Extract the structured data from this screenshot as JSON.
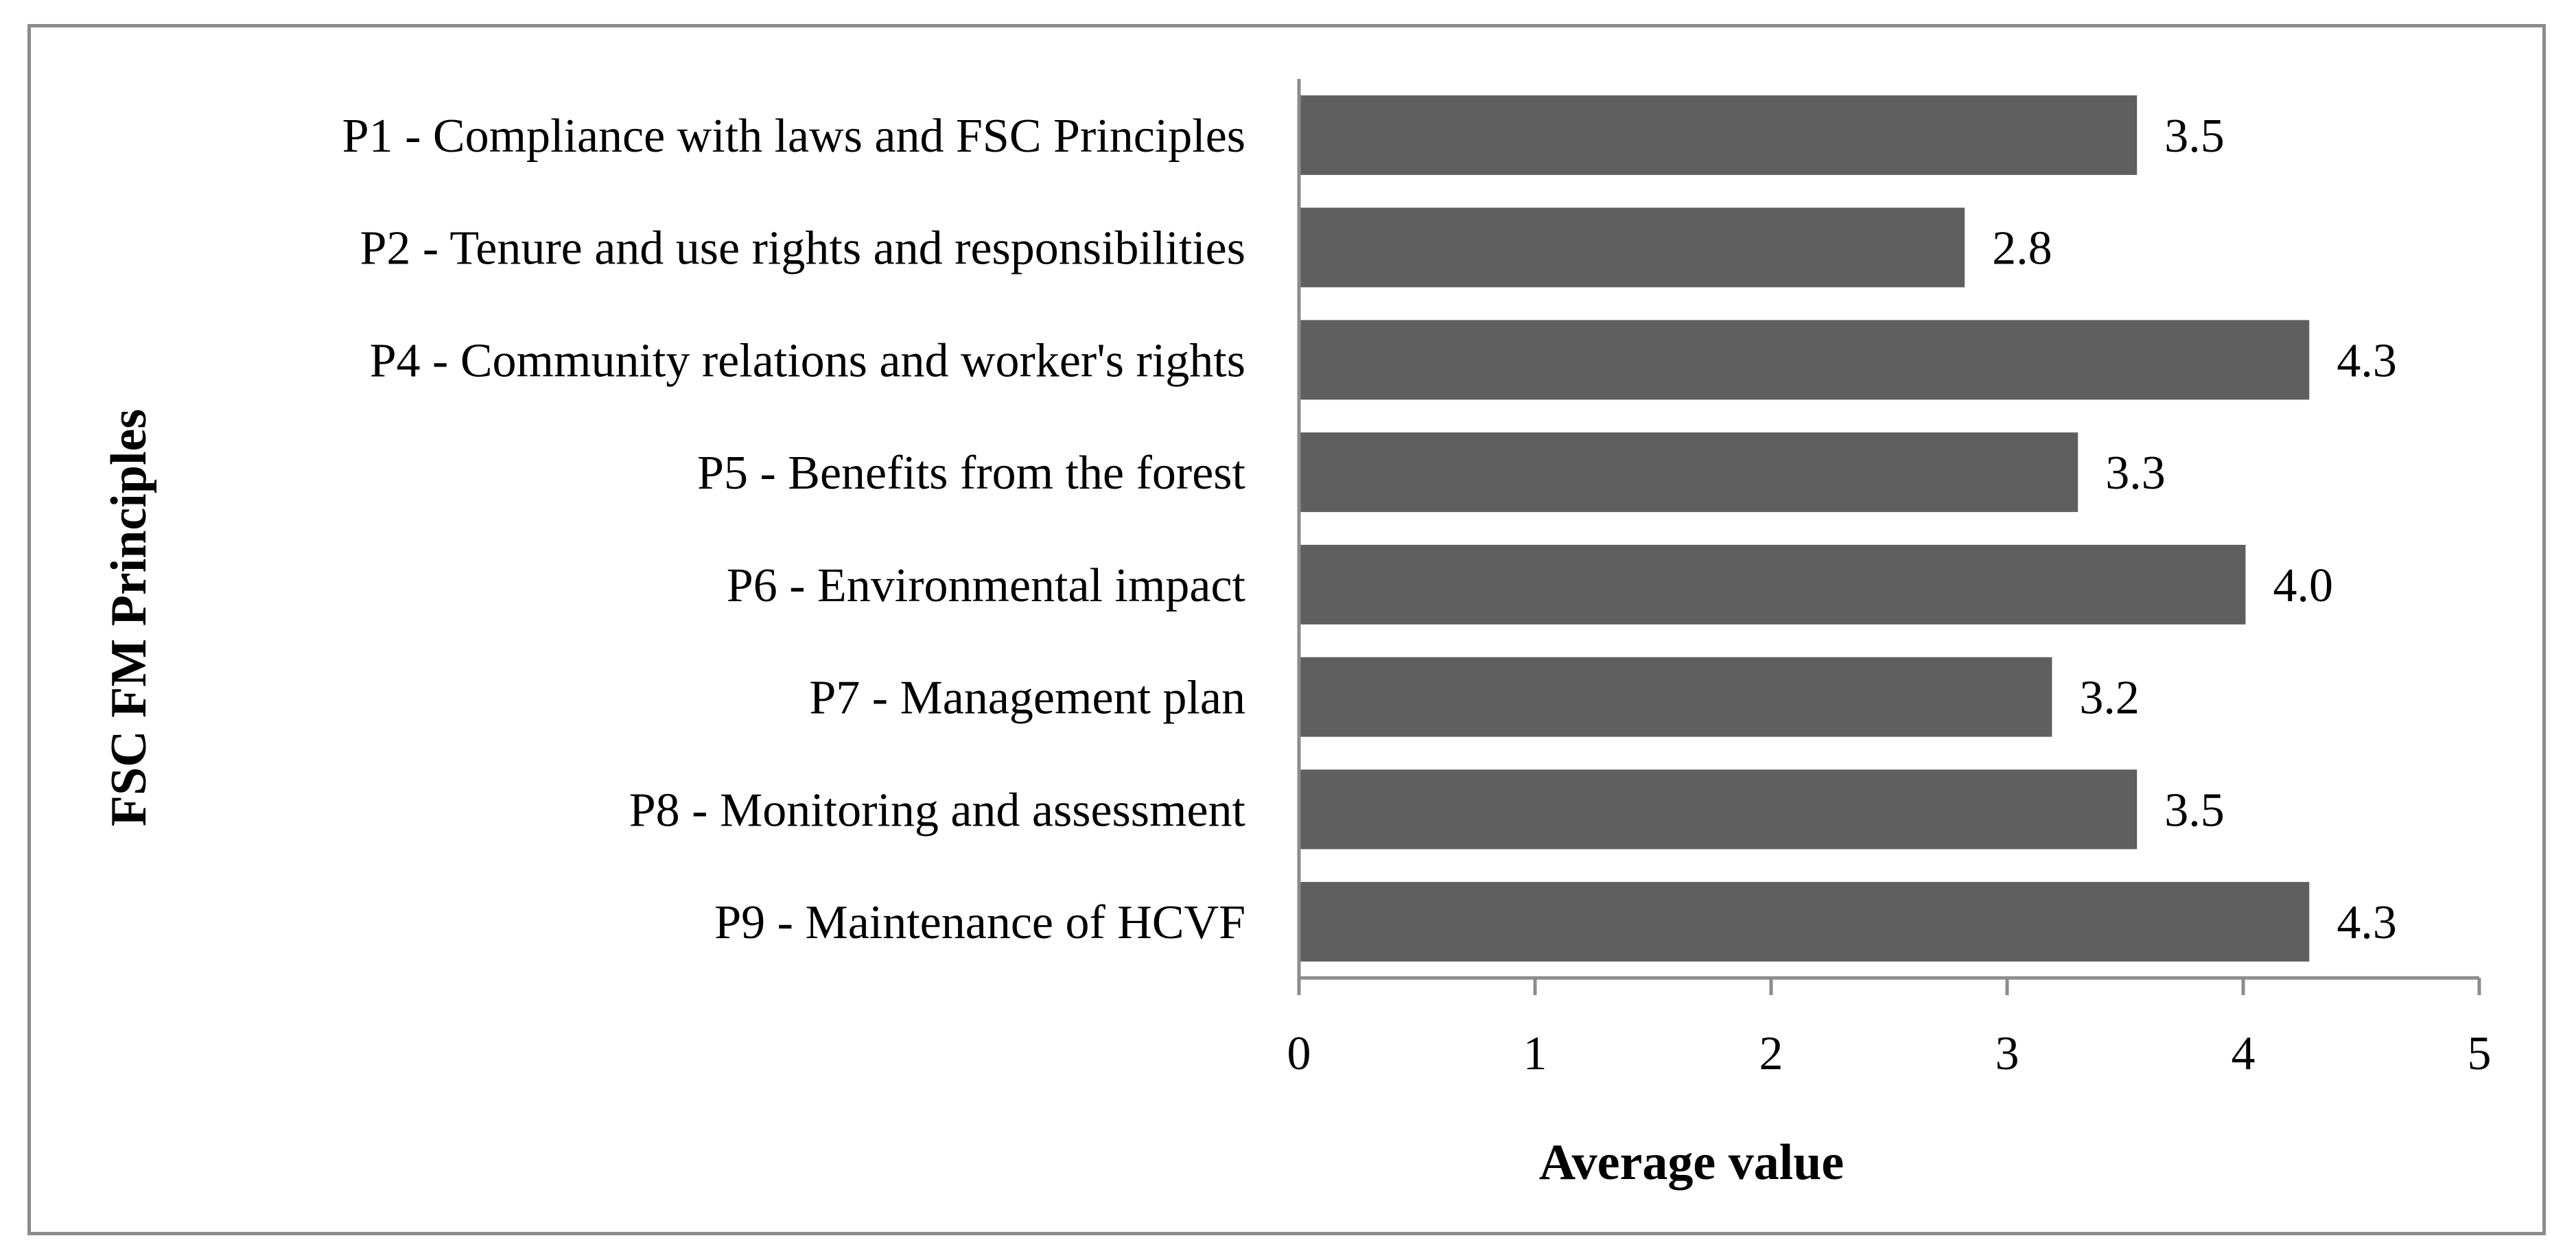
{
  "chart_data": {
    "type": "bar",
    "orientation": "horizontal",
    "title": "",
    "categories": [
      "P1 - Compliance with laws and FSC Principles",
      "P2 - Tenure and use rights and responsibilities",
      "P4 - Community relations and worker's rights",
      "P5 - Benefits from the forest",
      "P6 - Environmental impact",
      "P7 - Management plan",
      "P8 - Monitoring and assessment",
      "P9 - Maintenance of HCVF"
    ],
    "values": [
      3.55,
      2.82,
      4.28,
      3.3,
      4.01,
      3.19,
      3.55,
      4.28
    ],
    "value_labels": [
      "3.5",
      "2.8",
      "4.3",
      "3.3",
      "4.0",
      "3.2",
      "3.5",
      "4.3"
    ],
    "xlabel": "Average value",
    "ylabel": "FSC FM Principles",
    "xlim": [
      0,
      5
    ],
    "xticks": [
      "0",
      "1",
      "2",
      "3",
      "4",
      "5"
    ],
    "grid": false,
    "bar_color": "#5f5f5f",
    "frame_color": "#8c8c8c"
  }
}
